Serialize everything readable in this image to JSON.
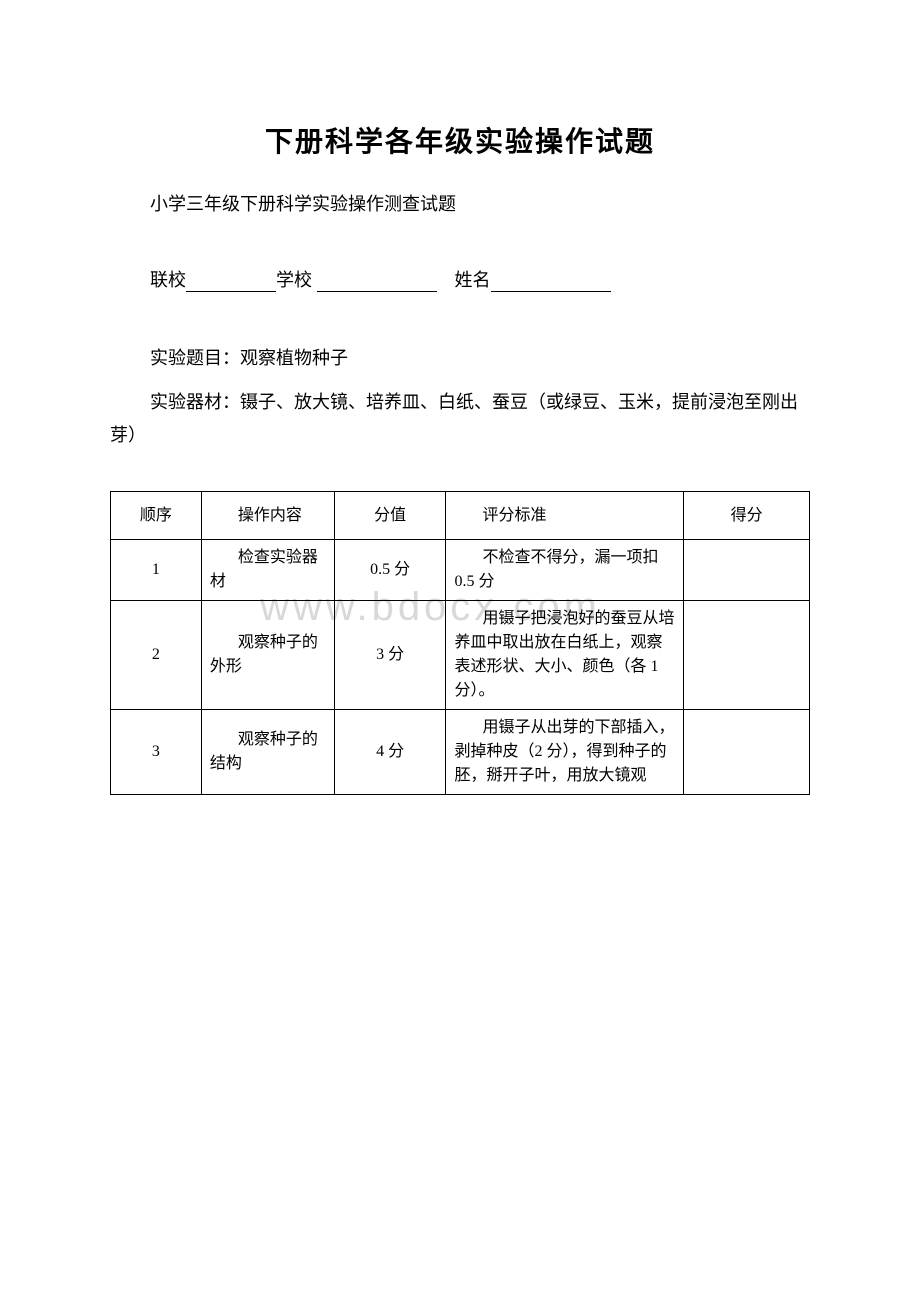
{
  "title": "下册科学各年级实验操作试题",
  "subtitle": "小学三年级下册科学实验操作测查试题",
  "form": {
    "label1": "联校",
    "label2": "学校",
    "label3": "姓名"
  },
  "experiment": {
    "topic_label": "实验题目：",
    "topic": "观察植物种子",
    "materials_label": "实验器材：",
    "materials": "镊子、放大镜、培养皿、白纸、蚕豆（或绿豆、玉米，提前浸泡至刚出芽）"
  },
  "table": {
    "headers": {
      "seq": "顺序",
      "operation": "操作内容",
      "score": "分值",
      "criteria": "评分标准",
      "result": "得分"
    },
    "rows": [
      {
        "seq": "1",
        "operation": "检查实验器材",
        "score": "0.5 分",
        "criteria": "不检查不得分，漏一项扣 0.5 分",
        "result": ""
      },
      {
        "seq": "2",
        "operation": "观察种子的外形",
        "score": "3 分",
        "criteria": "用镊子把浸泡好的蚕豆从培养皿中取出放在白纸上，观察表述形状、大小、颜色（各 1 分）。",
        "result": ""
      },
      {
        "seq": "3",
        "operation": "观察种子的结构",
        "score": "4 分",
        "criteria": "用镊子从出芽的下部插入，剥掉种皮（2 分），得到种子的胚，掰开子叶，用放大镜观",
        "result": ""
      }
    ]
  },
  "watermark": "www.bdocx.com",
  "colors": {
    "background": "#ffffff",
    "text": "#000000",
    "border": "#000000",
    "watermark": "#d8d8d8"
  },
  "fonts": {
    "title_size": 28,
    "body_size": 18,
    "table_size": 16
  }
}
